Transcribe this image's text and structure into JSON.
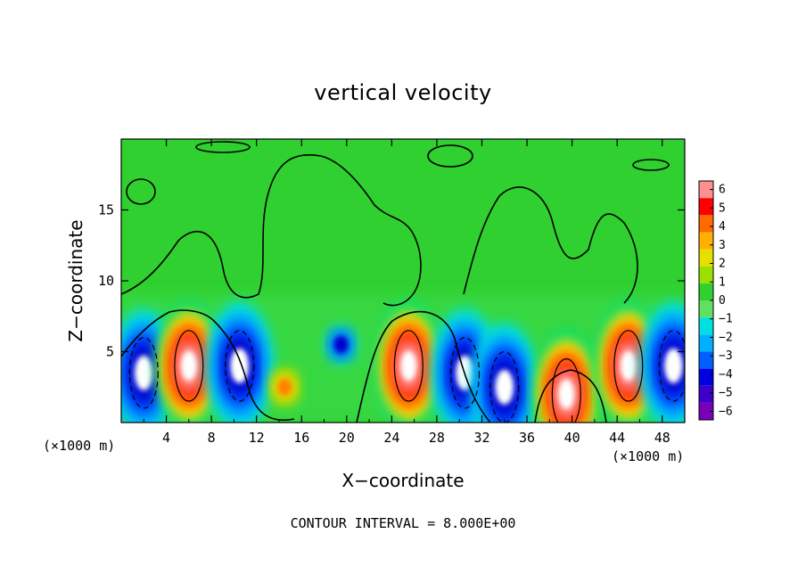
{
  "chart_data": {
    "type": "heatmap",
    "title": "vertical velocity",
    "xlabel": "X−coordinate",
    "ylabel": "Z−coordinate",
    "x_units": "(×1000 m)",
    "y_units": "(×1000 m)",
    "xlim": [
      0,
      50
    ],
    "ylim": [
      0,
      20
    ],
    "x_ticks": [
      4,
      8,
      12,
      16,
      20,
      24,
      28,
      32,
      36,
      40,
      44,
      48
    ],
    "y_ticks": [
      5,
      10,
      15
    ],
    "x_tick_labels": [
      "4",
      "8",
      "12",
      "16",
      "20",
      "24",
      "28",
      "32",
      "36",
      "40",
      "44",
      "48"
    ],
    "y_tick_labels": [
      "5",
      "10",
      "15"
    ],
    "colorbar": {
      "range": [
        -6,
        6
      ],
      "tick_labels": [
        "6",
        "5",
        "4",
        "3",
        "2",
        "1",
        "0",
        "−1",
        "−2",
        "−3",
        "−4",
        "−5",
        "−6"
      ],
      "colors": [
        "#7a00b8",
        "#3c00c8",
        "#0000e0",
        "#0060ff",
        "#00b0ff",
        "#00e0e0",
        "#60e060",
        "#30d030",
        "#9ae000",
        "#e6e000",
        "#ffb000",
        "#ff6a00",
        "#ff0000",
        "#ff9090"
      ]
    },
    "cells": [
      {
        "x": 2,
        "z": 3.5,
        "w": -12
      },
      {
        "x": 6,
        "z": 4,
        "w": 12
      },
      {
        "x": 10.5,
        "z": 4,
        "w": -12
      },
      {
        "x": 14.5,
        "z": 2.5,
        "w": 2
      },
      {
        "x": 19.5,
        "z": 5.5,
        "w": -3
      },
      {
        "x": 25.5,
        "z": 4,
        "w": 12
      },
      {
        "x": 30.5,
        "z": 3.5,
        "w": -12
      },
      {
        "x": 34,
        "z": 2.5,
        "w": -12
      },
      {
        "x": 39.5,
        "z": 2,
        "w": 12
      },
      {
        "x": 45,
        "z": 4,
        "w": 12
      },
      {
        "x": 49,
        "z": 4,
        "w": -12
      }
    ],
    "contour_interval": "CONTOUR INTERVAL = 8.000E+00"
  }
}
